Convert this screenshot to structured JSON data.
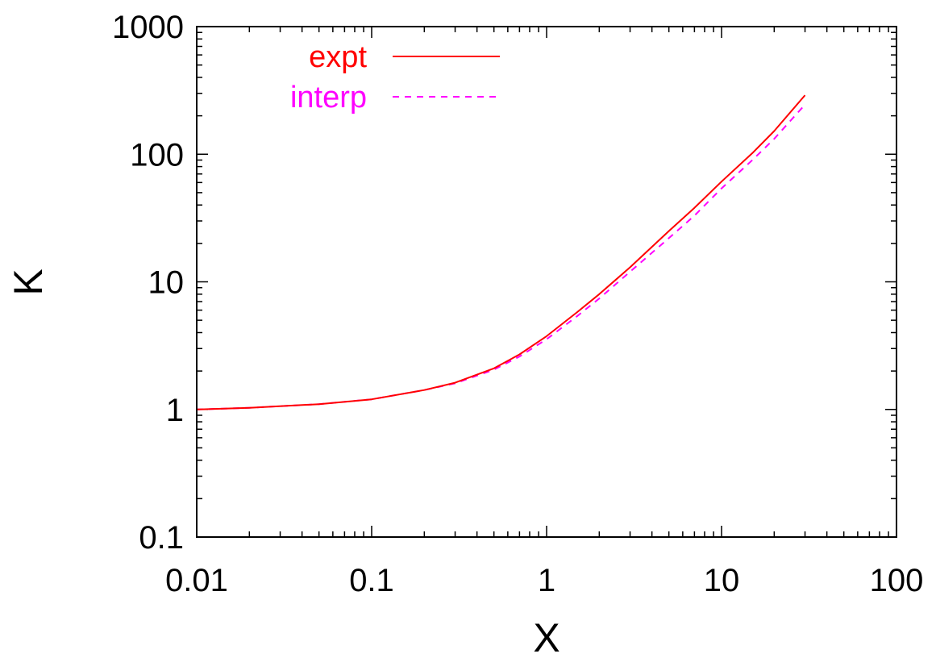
{
  "chart_data": {
    "type": "line",
    "title": "",
    "xlabel": "X",
    "ylabel": "K",
    "x_scale": "log",
    "y_scale": "log",
    "xlim": [
      0.01,
      100
    ],
    "ylim": [
      0.1,
      1000
    ],
    "x_ticks": [
      "0.01",
      "0.1",
      "1",
      "10",
      "100"
    ],
    "y_ticks": [
      "0.1",
      "1",
      "10",
      "100",
      "1000"
    ],
    "grid": false,
    "legend_position": "top-left",
    "series": [
      {
        "name": "expt",
        "color": "#ff0000",
        "style": "solid",
        "x": [
          0.01,
          0.02,
          0.05,
          0.1,
          0.2,
          0.3,
          0.5,
          0.7,
          1,
          1.5,
          2,
          3,
          5,
          7,
          10,
          15,
          20,
          30
        ],
        "y": [
          1.0,
          1.03,
          1.1,
          1.2,
          1.42,
          1.62,
          2.1,
          2.7,
          3.75,
          5.8,
          8.0,
          13.0,
          25.0,
          38.0,
          61.0,
          102.0,
          152.0,
          290.0
        ]
      },
      {
        "name": "interp",
        "color": "#ff00ff",
        "style": "dashed",
        "x": [
          0.01,
          0.02,
          0.05,
          0.1,
          0.2,
          0.3,
          0.5,
          0.7,
          1,
          1.5,
          2,
          3,
          5,
          7,
          10,
          15,
          20,
          30
        ],
        "y": [
          1.0,
          1.03,
          1.1,
          1.2,
          1.42,
          1.6,
          2.05,
          2.6,
          3.55,
          5.4,
          7.4,
          12.0,
          22.0,
          33.0,
          54.0,
          90.0,
          132.0,
          245.0
        ]
      }
    ]
  }
}
